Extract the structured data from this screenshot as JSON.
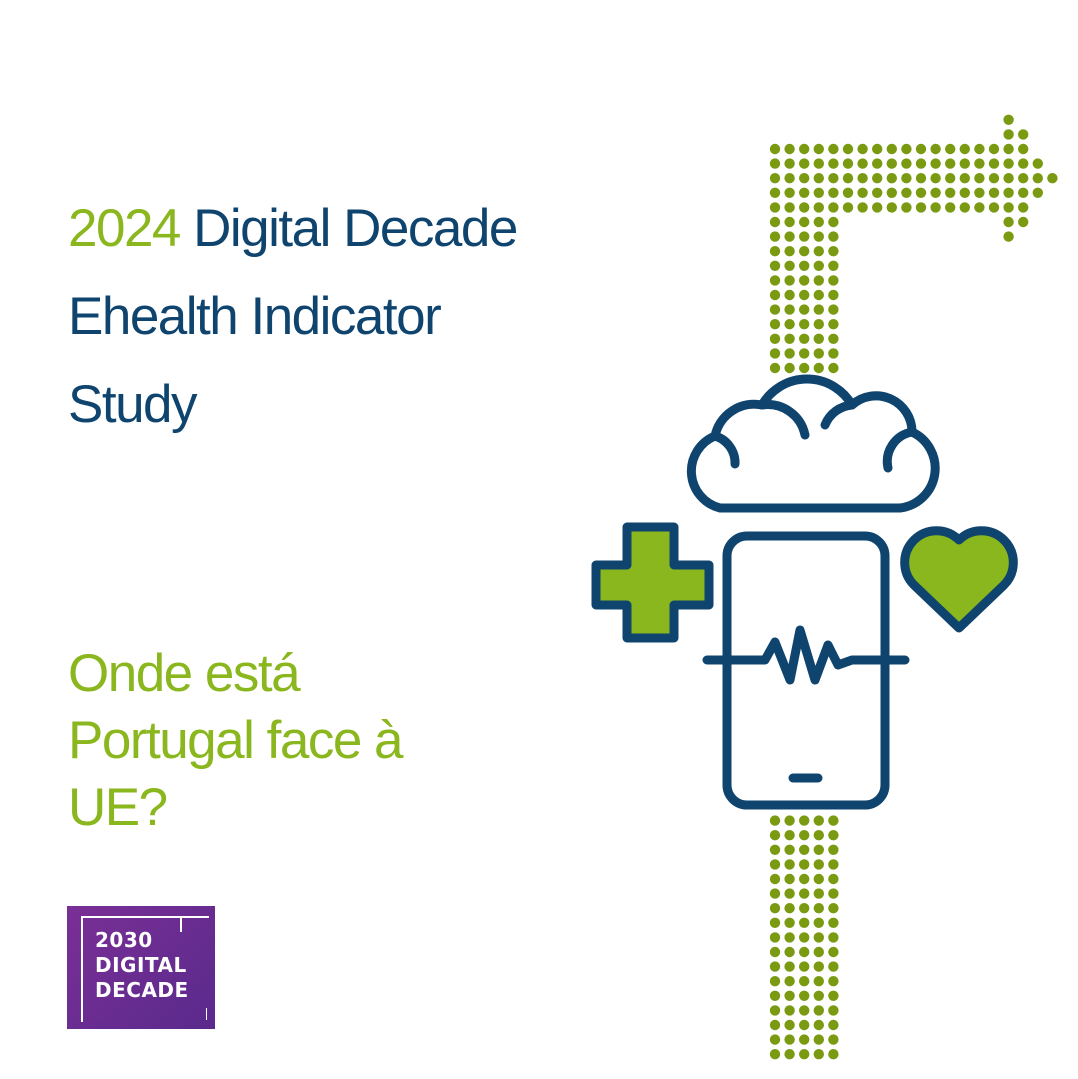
{
  "title": {
    "year": "2024",
    "line1_rest": " Digital Decade",
    "line2": "Ehealth Indicator",
    "line3": "Study"
  },
  "subtitle": {
    "line1": "Onde está",
    "line2": "Portugal face à",
    "line3": "UE?"
  },
  "logo": {
    "line1": "2030",
    "line2": "DIGITAL",
    "line3": "DECADE"
  },
  "colors": {
    "navy": "#0f446e",
    "green": "#8ab61e",
    "dot_green": "#7a9a12",
    "logo_purple": "#6a2c92"
  },
  "icons": [
    "dotted-arrow-icon",
    "cloud-icon",
    "smartphone-icon",
    "heartbeat-icon",
    "medical-cross-icon",
    "heart-icon"
  ]
}
